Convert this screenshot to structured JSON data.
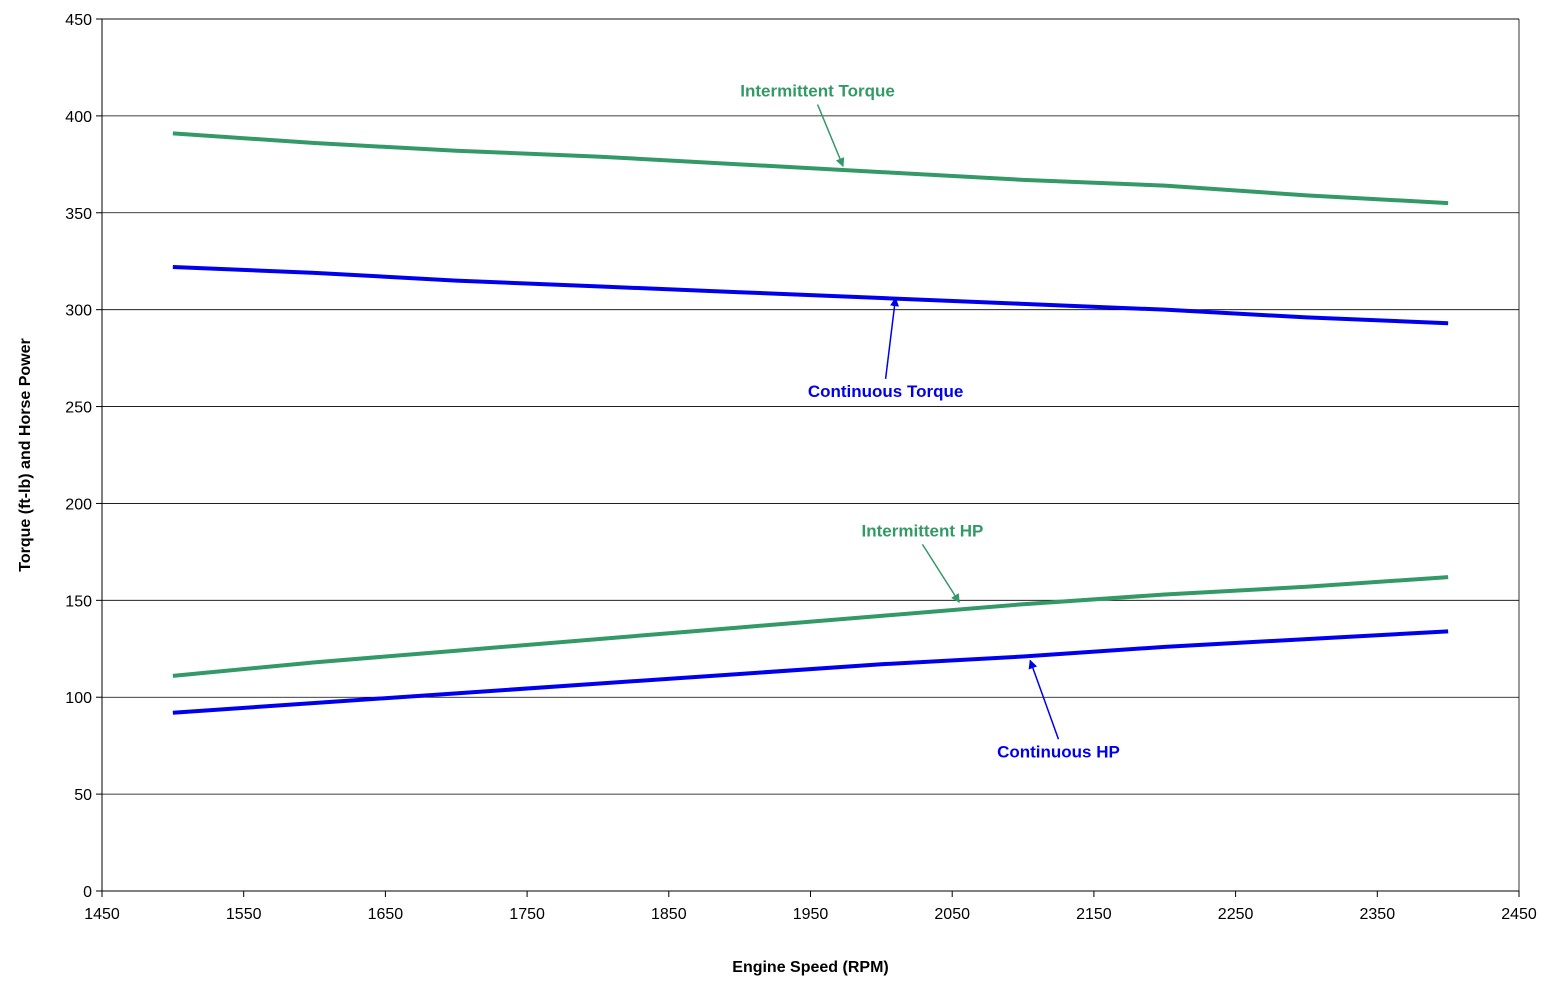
{
  "chart_data": {
    "type": "line",
    "title": "",
    "xlabel": "Engine Speed (RPM)",
    "ylabel": "Torque (ft-lb) and Horse Power",
    "xlim": [
      1450,
      2450
    ],
    "ylim": [
      0,
      450
    ],
    "xticks": [
      1450,
      1550,
      1650,
      1750,
      1850,
      1950,
      2050,
      2150,
      2250,
      2350,
      2450
    ],
    "yticks": [
      0,
      50,
      100,
      150,
      200,
      250,
      300,
      350,
      400,
      450
    ],
    "grid": "horizontal",
    "legend": "none",
    "x": [
      1500,
      1600,
      1700,
      1800,
      1900,
      2000,
      2100,
      2200,
      2300,
      2400
    ],
    "series": [
      {
        "name": "Intermittent Torque",
        "color": "#339966",
        "values": [
          391,
          386,
          382,
          379,
          375,
          371,
          367,
          364,
          359,
          355
        ],
        "annotation": {
          "text": "Intermittent Torque",
          "label_x": 1955,
          "label_y": 410,
          "arrow_x": 1973,
          "arrow_y": 374
        }
      },
      {
        "name": "Continuous Torque",
        "color": "#0000ee",
        "values": [
          322,
          319,
          315,
          312,
          309,
          306,
          303,
          300,
          296,
          293
        ],
        "annotation": {
          "text": "Continuous Torque",
          "label_x": 2003,
          "label_y": 255,
          "arrow_x": 2010,
          "arrow_y": 306
        }
      },
      {
        "name": "Intermittent HP",
        "color": "#339966",
        "values": [
          111,
          118,
          124,
          130,
          136,
          142,
          148,
          153,
          157,
          162
        ],
        "annotation": {
          "text": "Intermittent HP",
          "label_x": 2029,
          "label_y": 183,
          "arrow_x": 2055,
          "arrow_y": 149
        }
      },
      {
        "name": "Continuous HP",
        "color": "#0000ee",
        "values": [
          92,
          97,
          102,
          107,
          112,
          117,
          121,
          126,
          130,
          134
        ],
        "annotation": {
          "text": "Continuous HP",
          "label_x": 2125,
          "label_y": 69,
          "arrow_x": 2105,
          "arrow_y": 119
        }
      }
    ]
  }
}
